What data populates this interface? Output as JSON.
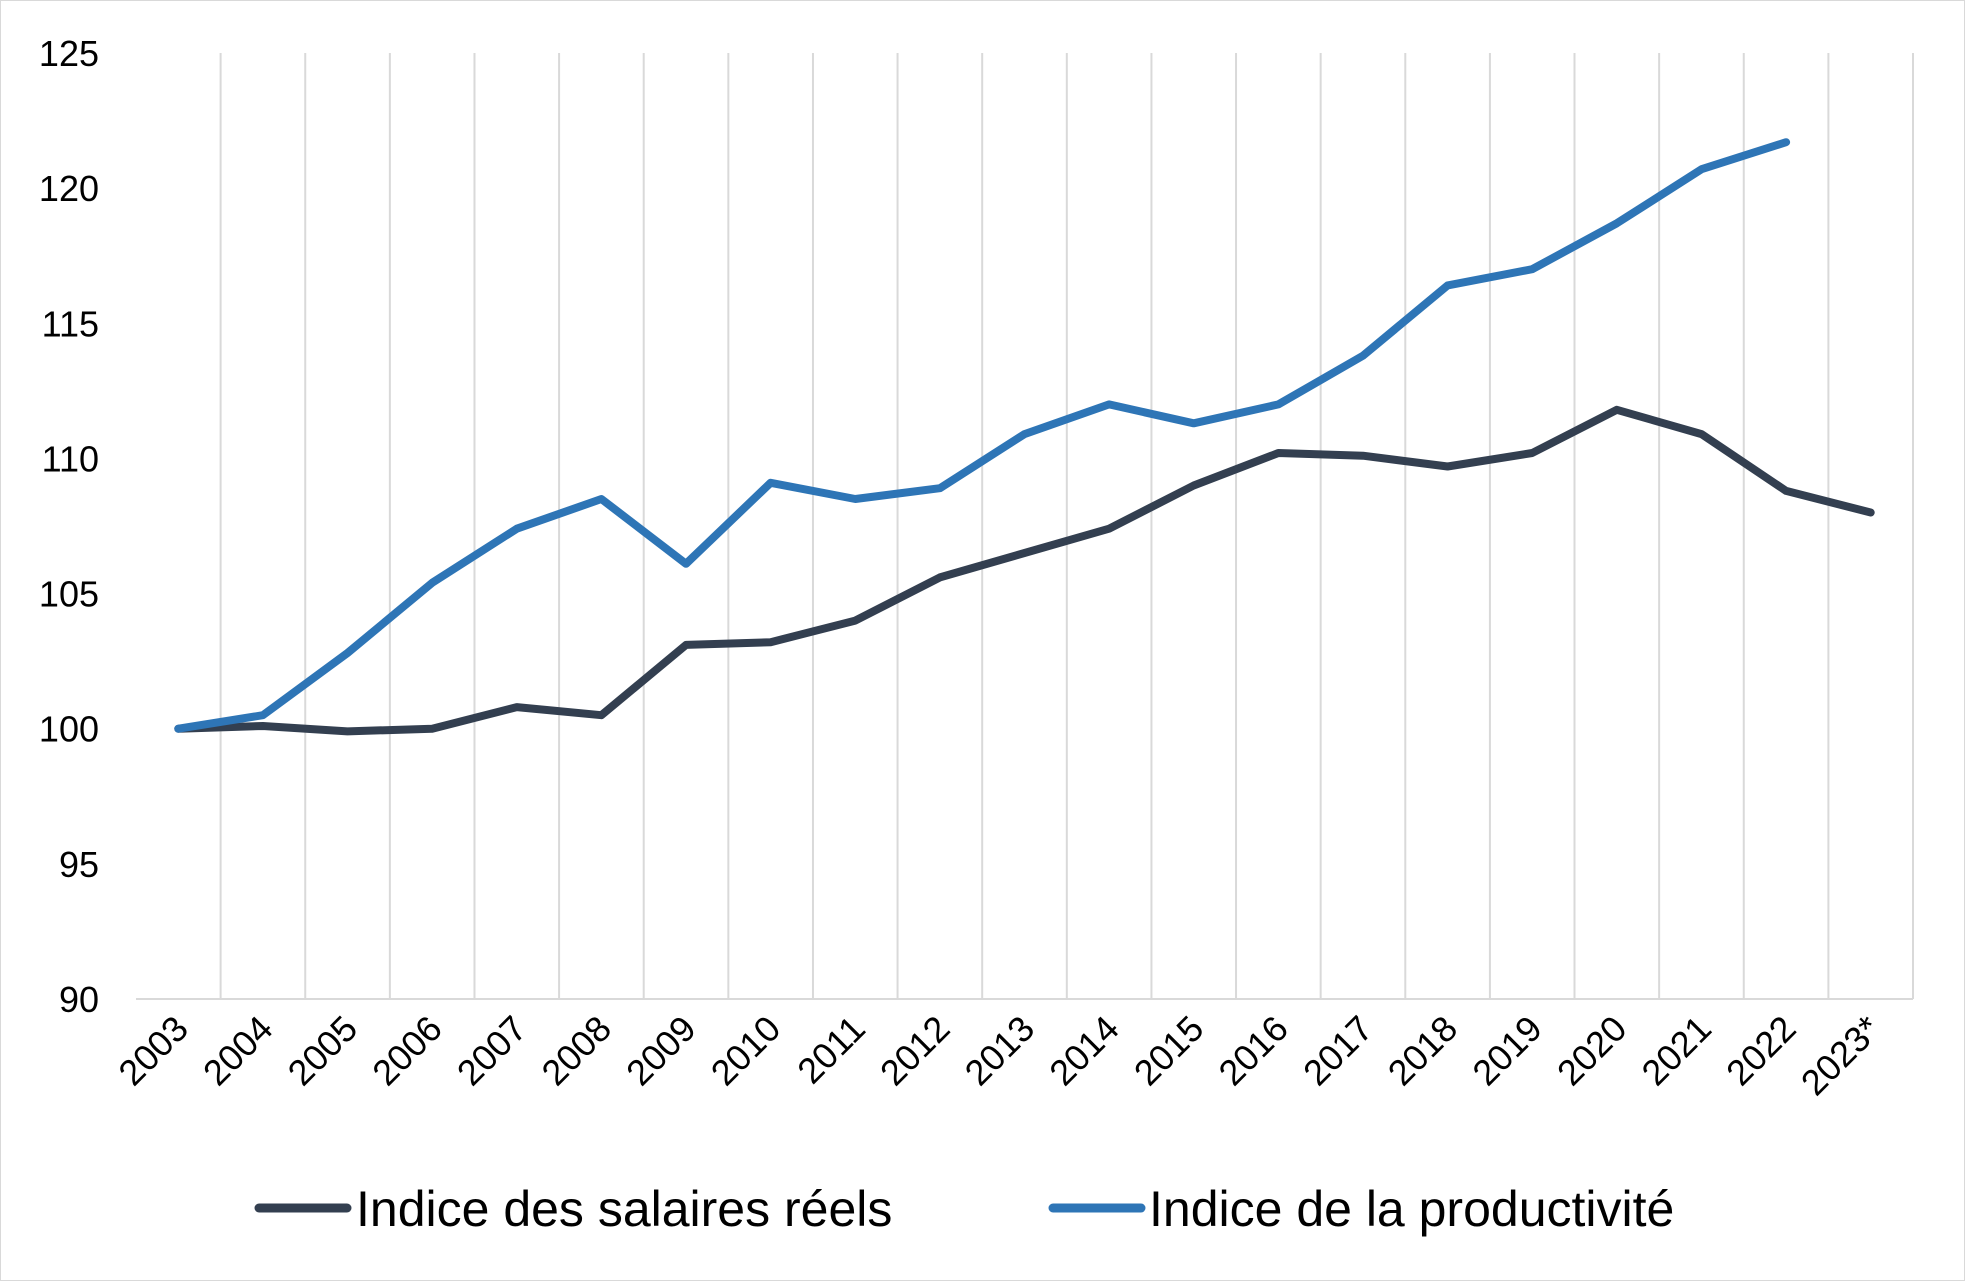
{
  "chart_data": {
    "type": "line",
    "categories": [
      "2003",
      "2004",
      "2005",
      "2006",
      "2007",
      "2008",
      "2009",
      "2010",
      "2011",
      "2012",
      "2013",
      "2014",
      "2015",
      "2016",
      "2017",
      "2018",
      "2019",
      "2020",
      "2021",
      "2022",
      "2023*"
    ],
    "ylim": [
      90,
      125
    ],
    "yticks": [
      90,
      95,
      100,
      105,
      110,
      115,
      120,
      125
    ],
    "grid": "vertical",
    "legend_position": "bottom",
    "series": [
      {
        "name": "Indice des salaires réels",
        "color": "#333f50",
        "values": [
          100,
          100.1,
          99.9,
          100,
          100.8,
          100.5,
          103.1,
          103.2,
          104,
          105.6,
          106.5,
          107.4,
          109,
          110.2,
          110.1,
          109.7,
          110.2,
          111.8,
          110.9,
          108.8,
          108
        ]
      },
      {
        "name": "Indice de la productivité",
        "color": "#2e75b6",
        "values": [
          100,
          100.5,
          102.8,
          105.4,
          107.4,
          108.5,
          106.1,
          109.1,
          108.5,
          108.9,
          110.9,
          112,
          111.3,
          112,
          113.8,
          116.4,
          117,
          118.7,
          120.7,
          121.7,
          null
        ]
      }
    ]
  }
}
